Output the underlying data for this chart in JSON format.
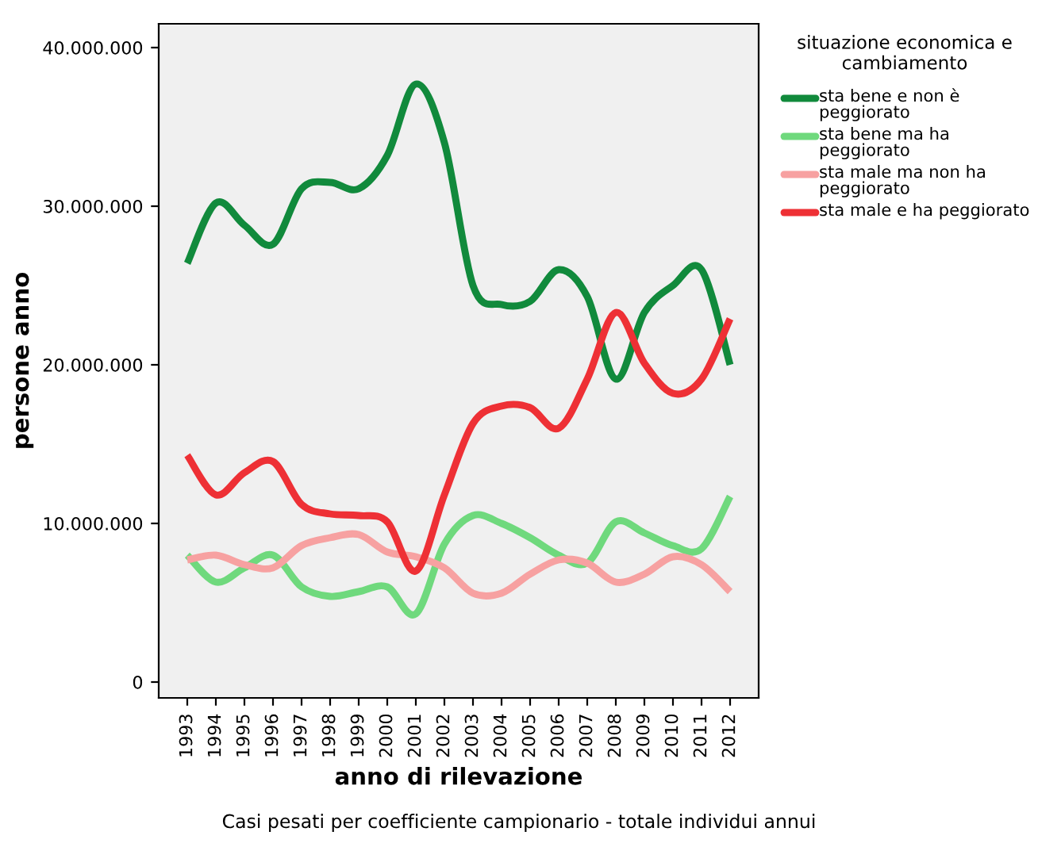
{
  "chart_data": {
    "type": "line",
    "xlabel": "anno di rilevazione",
    "ylabel": "persone anno",
    "legend_title": "situazione economica e cambiamento",
    "categories": [
      "1993",
      "1994",
      "1995",
      "1996",
      "1997",
      "1998",
      "1999",
      "2000",
      "2001",
      "2002",
      "2003",
      "2004",
      "2005",
      "2006",
      "2007",
      "2008",
      "2009",
      "2010",
      "2011",
      "2012"
    ],
    "series": [
      {
        "name": "sta bene e non è peggiorato",
        "color": "#118a3c",
        "values": [
          26400000,
          30200000,
          28800000,
          27600000,
          31100000,
          31500000,
          31100000,
          33200000,
          37700000,
          34000000,
          25000000,
          23800000,
          24000000,
          26000000,
          24300000,
          19100000,
          23300000,
          25000000,
          26000000,
          20000000
        ]
      },
      {
        "name": "sta bene ma ha peggiorato",
        "color": "#6fd97d",
        "values": [
          8000000,
          6300000,
          7200000,
          8000000,
          6000000,
          5400000,
          5700000,
          6000000,
          4300000,
          8700000,
          10500000,
          10000000,
          9100000,
          8000000,
          7500000,
          10100000,
          9400000,
          8600000,
          8400000,
          11700000
        ]
      },
      {
        "name": "sta male ma non ha peggiorato",
        "color": "#f7a1a1",
        "values": [
          7700000,
          8000000,
          7400000,
          7200000,
          8600000,
          9100000,
          9300000,
          8200000,
          7900000,
          7200000,
          5600000,
          5600000,
          6800000,
          7700000,
          7500000,
          6300000,
          6800000,
          7900000,
          7400000,
          5700000
        ]
      },
      {
        "name": "sta male e ha peggiorato",
        "color": "#ee3035",
        "values": [
          14300000,
          11800000,
          13200000,
          13900000,
          11200000,
          10600000,
          10500000,
          10100000,
          7000000,
          11800000,
          16300000,
          17400000,
          17300000,
          16000000,
          19100000,
          23300000,
          20100000,
          18200000,
          19100000,
          22900000
        ]
      }
    ],
    "ylim": [
      -1000000,
      41500000
    ],
    "yticks": [
      0,
      {
        "value": 10000000,
        "label": "10.000.000"
      },
      {
        "value": 20000000,
        "label": "20.000.000"
      },
      {
        "value": 30000000,
        "label": "30.000.000"
      },
      {
        "value": 40000000,
        "label": "40.000.000"
      }
    ],
    "grid": false,
    "legend": "right",
    "line_style": "solid",
    "marker": "none",
    "annotations": [
      "Casi pesati per coefficiente campionario - totale individui annui"
    ]
  }
}
